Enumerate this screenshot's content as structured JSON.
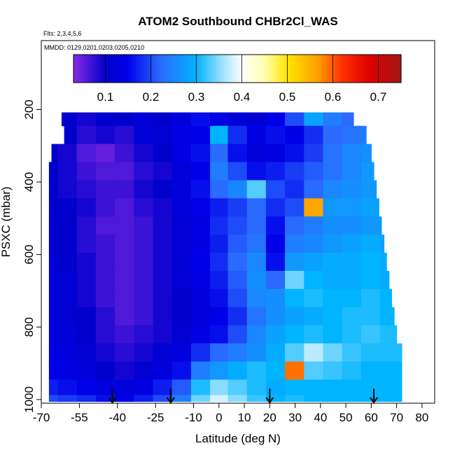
{
  "chart_data": {
    "type": "heatmap",
    "title": "ATOM2 Southbound CHBr2Cl_WAS",
    "flights_note": "Flts: 2,3,4,5,6",
    "dates_note": "MMDD: 0129,0201,0203,0205,0210",
    "xlabel": "Latitude (deg N)",
    "ylabel": "PSXC (mbar)",
    "xlim": [
      -70,
      85
    ],
    "ylim": [
      1010,
      10
    ],
    "x_ticks": [
      -70,
      -55,
      -40,
      -25,
      -10,
      0,
      10,
      20,
      30,
      40,
      50,
      60,
      70,
      80
    ],
    "x_tick_labels": [
      "-70",
      "-55",
      "-40",
      "-25",
      "-10",
      "0",
      "10",
      "20",
      "30",
      "40",
      "50",
      "60",
      "70",
      "80"
    ],
    "y_ticks": [
      200,
      400,
      600,
      800,
      1000
    ],
    "y_tick_labels": [
      "200",
      "400",
      "600",
      "800",
      "1000"
    ],
    "colorbar": {
      "range": [
        0.03,
        0.75
      ],
      "ticks": [
        0.1,
        0.2,
        0.3,
        0.4,
        0.5,
        0.6,
        0.7
      ],
      "tick_labels": [
        "0.1",
        "0.2",
        "0.3",
        "0.4",
        "0.5",
        "0.6",
        "0.7"
      ],
      "stops": [
        {
          "v": 0.03,
          "c": "#8a2be2"
        },
        {
          "v": 0.1,
          "c": "#0000cd"
        },
        {
          "v": 0.15,
          "c": "#0000e8"
        },
        {
          "v": 0.22,
          "c": "#2a6aff"
        },
        {
          "v": 0.3,
          "c": "#00b4ff"
        },
        {
          "v": 0.36,
          "c": "#a6e4ff"
        },
        {
          "v": 0.4,
          "c": "#ffffff"
        },
        {
          "v": 0.45,
          "c": "#ffffb0"
        },
        {
          "v": 0.5,
          "c": "#ffe600"
        },
        {
          "v": 0.57,
          "c": "#ff9a00"
        },
        {
          "v": 0.62,
          "c": "#ff3000"
        },
        {
          "v": 0.68,
          "c": "#e00000"
        },
        {
          "v": 0.75,
          "c": "#a01515"
        }
      ]
    },
    "flight_markers_lat": [
      -42,
      -19,
      20,
      61
    ],
    "pressure_levels": [
      220,
      270,
      320,
      370,
      420,
      470,
      520,
      570,
      620,
      670,
      720,
      770,
      820,
      870,
      920,
      970,
      1005
    ],
    "level_lat_extent": [
      [
        -62,
        53
      ],
      [
        -61,
        58
      ],
      [
        -66,
        60
      ],
      [
        -67,
        61
      ],
      [
        -67,
        62
      ],
      [
        -67,
        63
      ],
      [
        -67,
        64
      ],
      [
        -67,
        65
      ],
      [
        -67,
        66
      ],
      [
        -67,
        67
      ],
      [
        -67,
        68
      ],
      [
        -67,
        69
      ],
      [
        -67,
        70
      ],
      [
        -67,
        72
      ],
      [
        -67,
        72
      ],
      [
        -67,
        72
      ],
      [
        -67,
        72
      ]
    ],
    "lat_bins": [
      -67,
      -60,
      -52,
      -45,
      -37,
      -30,
      -22,
      -15,
      -7,
      0,
      7,
      15,
      22,
      30,
      37,
      45,
      52,
      60,
      67
    ],
    "values": [
      [
        0.12,
        0.1,
        0.09,
        0.11,
        0.1,
        0.12,
        0.1,
        0.13,
        0.16,
        0.14,
        0.12,
        0.11,
        0.15,
        0.2,
        0.28,
        0.24,
        0.22,
        0.2,
        0.18
      ],
      [
        0.11,
        0.1,
        0.08,
        0.09,
        0.08,
        0.12,
        0.11,
        0.14,
        0.15,
        0.3,
        0.18,
        0.14,
        0.16,
        0.15,
        0.18,
        0.22,
        0.23,
        0.24,
        0.22
      ],
      [
        0.1,
        0.09,
        0.06,
        0.05,
        0.07,
        0.09,
        0.1,
        0.14,
        0.16,
        0.22,
        0.16,
        0.13,
        0.14,
        0.16,
        0.19,
        0.23,
        0.25,
        0.26,
        0.25
      ],
      [
        0.1,
        0.09,
        0.07,
        0.06,
        0.06,
        0.08,
        0.09,
        0.12,
        0.15,
        0.24,
        0.2,
        0.16,
        0.17,
        0.19,
        0.21,
        0.23,
        0.25,
        0.27,
        0.26
      ],
      [
        0.1,
        0.09,
        0.08,
        0.07,
        0.07,
        0.09,
        0.1,
        0.12,
        0.16,
        0.22,
        0.25,
        0.33,
        0.2,
        0.18,
        0.22,
        0.25,
        0.26,
        0.27,
        0.27
      ],
      [
        0.1,
        0.1,
        0.09,
        0.07,
        0.06,
        0.08,
        0.09,
        0.12,
        0.15,
        0.17,
        0.19,
        0.22,
        0.18,
        0.2,
        0.56,
        0.27,
        0.27,
        0.28,
        0.27
      ],
      [
        0.11,
        0.1,
        0.08,
        0.06,
        0.06,
        0.07,
        0.09,
        0.11,
        0.14,
        0.18,
        0.2,
        0.22,
        0.16,
        0.22,
        0.24,
        0.26,
        0.26,
        0.27,
        0.27
      ],
      [
        0.11,
        0.1,
        0.08,
        0.07,
        0.06,
        0.07,
        0.09,
        0.11,
        0.14,
        0.17,
        0.21,
        0.23,
        0.15,
        0.24,
        0.25,
        0.27,
        0.28,
        0.29,
        0.28
      ],
      [
        0.12,
        0.1,
        0.09,
        0.07,
        0.06,
        0.07,
        0.09,
        0.11,
        0.15,
        0.18,
        0.22,
        0.25,
        0.16,
        0.27,
        0.28,
        0.29,
        0.29,
        0.3,
        0.29
      ],
      [
        0.12,
        0.11,
        0.09,
        0.07,
        0.06,
        0.07,
        0.09,
        0.11,
        0.14,
        0.17,
        0.21,
        0.26,
        0.22,
        0.34,
        0.3,
        0.29,
        0.29,
        0.3,
        0.29
      ],
      [
        0.12,
        0.11,
        0.09,
        0.07,
        0.06,
        0.07,
        0.09,
        0.1,
        0.13,
        0.16,
        0.2,
        0.25,
        0.26,
        0.3,
        0.31,
        0.3,
        0.3,
        0.31,
        0.3
      ],
      [
        0.13,
        0.11,
        0.1,
        0.08,
        0.06,
        0.07,
        0.09,
        0.1,
        0.13,
        0.15,
        0.18,
        0.23,
        0.26,
        0.28,
        0.29,
        0.3,
        0.31,
        0.31,
        0.3
      ],
      [
        0.13,
        0.12,
        0.1,
        0.08,
        0.07,
        0.08,
        0.09,
        0.11,
        0.14,
        0.16,
        0.2,
        0.25,
        0.28,
        0.3,
        0.31,
        0.3,
        0.31,
        0.32,
        0.31
      ],
      [
        0.14,
        0.13,
        0.11,
        0.09,
        0.08,
        0.09,
        0.11,
        0.13,
        0.18,
        0.22,
        0.24,
        0.26,
        0.29,
        0.33,
        0.37,
        0.34,
        0.32,
        0.31,
        0.31
      ],
      [
        0.15,
        0.14,
        0.12,
        0.1,
        0.09,
        0.11,
        0.13,
        0.16,
        0.24,
        0.27,
        0.29,
        0.31,
        0.3,
        0.59,
        0.33,
        0.32,
        0.31,
        0.3,
        0.3
      ],
      [
        0.17,
        0.16,
        0.15,
        0.13,
        0.12,
        0.14,
        0.17,
        0.21,
        0.31,
        0.35,
        0.33,
        0.31,
        0.29,
        0.3,
        0.3,
        0.3,
        0.3,
        0.3,
        0.3
      ],
      [
        0.2,
        0.19,
        0.18,
        0.16,
        0.15,
        0.17,
        0.2,
        0.24,
        0.34,
        0.38,
        0.35,
        0.32,
        0.3,
        0.31,
        0.3,
        0.3,
        0.3,
        0.3,
        0.3
      ]
    ]
  }
}
